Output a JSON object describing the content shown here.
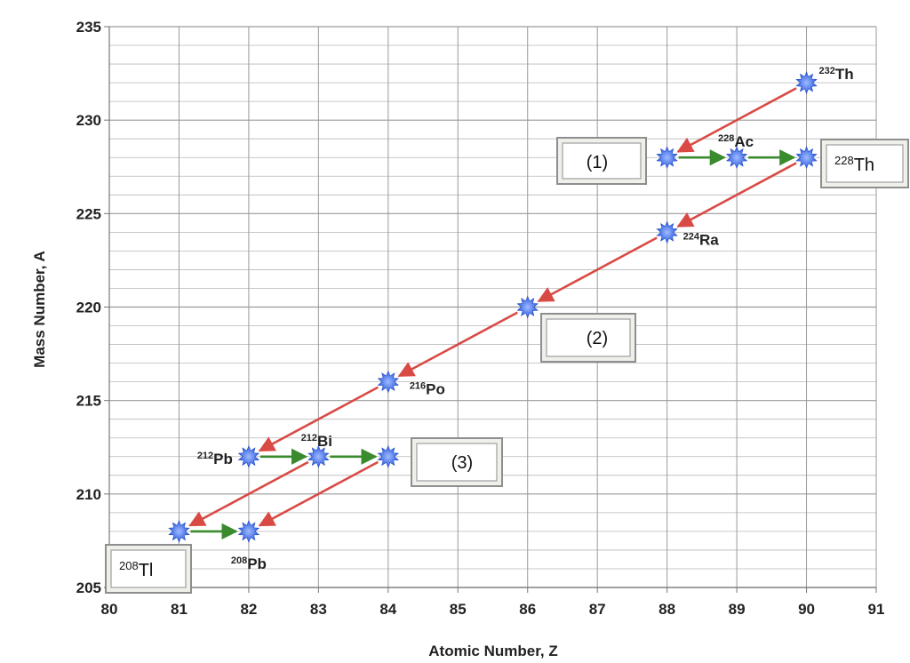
{
  "chart_data": {
    "type": "scatter",
    "title": "",
    "xlabel": "Atomic Number, Z",
    "ylabel": "Mass Number, A",
    "xlim": [
      80,
      91
    ],
    "ylim": [
      205,
      235
    ],
    "x_ticks": [
      "80",
      "81",
      "82",
      "83",
      "84",
      "85",
      "86",
      "87",
      "88",
      "89",
      "90",
      "91"
    ],
    "y_ticks": [
      "205",
      "210",
      "215",
      "220",
      "225",
      "230",
      "235"
    ],
    "grid": true,
    "minor_grid_y_step": 1,
    "points": [
      {
        "z": 90,
        "a": 232,
        "label": "Th",
        "mass": "232"
      },
      {
        "z": 88,
        "a": 228,
        "label": "",
        "mass": ""
      },
      {
        "z": 89,
        "a": 228,
        "label": "Ac",
        "mass": "228"
      },
      {
        "z": 90,
        "a": 228,
        "label": "",
        "mass": ""
      },
      {
        "z": 88,
        "a": 224,
        "label": "Ra",
        "mass": "224"
      },
      {
        "z": 86,
        "a": 220,
        "label": "",
        "mass": ""
      },
      {
        "z": 84,
        "a": 216,
        "label": "Po",
        "mass": "216"
      },
      {
        "z": 82,
        "a": 212,
        "label": "Pb",
        "mass": "212"
      },
      {
        "z": 83,
        "a": 212,
        "label": "Bi",
        "mass": "212"
      },
      {
        "z": 84,
        "a": 212,
        "label": "",
        "mass": ""
      },
      {
        "z": 81,
        "a": 208,
        "label": "",
        "mass": ""
      },
      {
        "z": 82,
        "a": 208,
        "label": "Pb",
        "mass": "208"
      }
    ],
    "alpha_arrows": [
      {
        "from": [
          90,
          232
        ],
        "to": [
          88,
          228
        ]
      },
      {
        "from": [
          90,
          228
        ],
        "to": [
          88,
          224
        ]
      },
      {
        "from": [
          88,
          224
        ],
        "to": [
          86,
          220
        ]
      },
      {
        "from": [
          86,
          220
        ],
        "to": [
          84,
          216
        ]
      },
      {
        "from": [
          84,
          216
        ],
        "to": [
          82,
          212
        ]
      },
      {
        "from": [
          83,
          212
        ],
        "to": [
          81,
          208
        ]
      },
      {
        "from": [
          84,
          212
        ],
        "to": [
          82,
          208
        ]
      }
    ],
    "beta_arrows": [
      {
        "from": [
          88,
          228
        ],
        "to": [
          89,
          228
        ]
      },
      {
        "from": [
          89,
          228
        ],
        "to": [
          90,
          228
        ]
      },
      {
        "from": [
          82,
          212
        ],
        "to": [
          83,
          212
        ]
      },
      {
        "from": [
          83,
          212
        ],
        "to": [
          84,
          212
        ]
      },
      {
        "from": [
          81,
          208
        ],
        "to": [
          82,
          208
        ]
      }
    ],
    "boxes": [
      {
        "text": "(1)",
        "kind": "plain"
      },
      {
        "text": "(2)",
        "kind": "plain"
      },
      {
        "text": "(3)",
        "kind": "plain"
      },
      {
        "text": "Th",
        "mass": "228",
        "kind": "nuclide"
      },
      {
        "text": "Tl",
        "mass": "208",
        "kind": "nuclide"
      }
    ],
    "colors": {
      "alpha_arrow": "#d94a45",
      "beta_arrow": "#3a8a2e",
      "marker": "#2f5fe0",
      "marker_core": "#7fa4ff",
      "grid": "#b8b8b8",
      "box_border": "#8e8e8e",
      "box_fill": "#f0f0ea"
    }
  }
}
